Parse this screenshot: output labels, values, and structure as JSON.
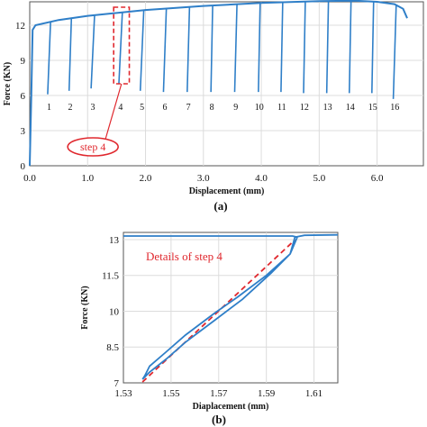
{
  "chart_data": [
    {
      "type": "line",
      "panel_label": "(a)",
      "xlabel": "Displacement (mm)",
      "ylabel": "Force (KN)",
      "xlim": [
        0.0,
        6.8
      ],
      "ylim": [
        0,
        14
      ],
      "xticks": [
        "0.0",
        "1.0",
        "2.0",
        "3.0",
        "4.0",
        "5.0",
        "6.0"
      ],
      "yticks": [
        "0",
        "3",
        "6",
        "9",
        "12"
      ],
      "grid": true,
      "series_color": "#2f7fc8",
      "envelope": {
        "x": [
          0.0,
          0.03,
          0.05,
          0.1,
          0.5,
          1.0,
          2.0,
          3.0,
          4.0,
          5.0,
          5.6,
          6.0,
          6.3,
          6.45,
          6.52
        ],
        "y": [
          0.0,
          6.5,
          11.6,
          12.0,
          12.45,
          12.8,
          13.3,
          13.65,
          13.9,
          14.05,
          14.1,
          14.0,
          13.8,
          13.4,
          12.6
        ]
      },
      "unload_steps": [
        {
          "label": "1",
          "x_top": 0.36,
          "x_bottom": 0.31,
          "y_bottom": 6.1
        },
        {
          "label": "2",
          "x_top": 0.72,
          "x_bottom": 0.68,
          "y_bottom": 6.4
        },
        {
          "label": "3",
          "x_top": 1.12,
          "x_bottom": 1.06,
          "y_bottom": 6.6
        },
        {
          "label": "4",
          "x_top": 1.6,
          "x_bottom": 1.54,
          "y_bottom": 7.0
        },
        {
          "label": "5",
          "x_top": 1.97,
          "x_bottom": 1.91,
          "y_bottom": 6.4
        },
        {
          "label": "6",
          "x_top": 2.36,
          "x_bottom": 2.31,
          "y_bottom": 6.3
        },
        {
          "label": "7",
          "x_top": 2.76,
          "x_bottom": 2.72,
          "y_bottom": 6.3
        },
        {
          "label": "8",
          "x_top": 3.16,
          "x_bottom": 3.13,
          "y_bottom": 6.3
        },
        {
          "label": "9",
          "x_top": 3.58,
          "x_bottom": 3.54,
          "y_bottom": 6.3
        },
        {
          "label": "10",
          "x_top": 3.98,
          "x_bottom": 3.95,
          "y_bottom": 6.3
        },
        {
          "label": "11",
          "x_top": 4.37,
          "x_bottom": 4.34,
          "y_bottom": 6.3
        },
        {
          "label": "12",
          "x_top": 4.76,
          "x_bottom": 4.73,
          "y_bottom": 6.2
        },
        {
          "label": "13",
          "x_top": 5.16,
          "x_bottom": 5.13,
          "y_bottom": 6.2
        },
        {
          "label": "14",
          "x_top": 5.55,
          "x_bottom": 5.52,
          "y_bottom": 6.2
        },
        {
          "label": "15",
          "x_top": 5.94,
          "x_bottom": 5.91,
          "y_bottom": 6.2
        },
        {
          "label": "16",
          "x_top": 6.33,
          "x_bottom": 6.28,
          "y_bottom": 5.7
        }
      ],
      "step_label_y": 5.0,
      "highlight_box": {
        "x0": 1.45,
        "x1": 1.72,
        "y0": 7.0,
        "y1": 14.4,
        "color": "#e0282e"
      },
      "callout": {
        "text": "step 4",
        "color": "#e0282e"
      }
    },
    {
      "type": "line",
      "panel_label": "(b)",
      "annotation": "Details of step 4",
      "annotation_color": "#e0282e",
      "xlabel": "Diaplacement (mm)",
      "ylabel": "Force (KN)",
      "xlim": [
        1.53,
        1.62
      ],
      "ylim": [
        7,
        13.3
      ],
      "xticks": [
        "1.53",
        "1.55",
        "1.57",
        "1.59",
        "1.61"
      ],
      "yticks": [
        "7",
        "8.5",
        "10",
        "11.5",
        "13"
      ],
      "grid": true,
      "series_color": "#2f7fc8",
      "loop": {
        "x": [
          1.53,
          1.545,
          1.56,
          1.575,
          1.59,
          1.601,
          1.603,
          1.6,
          1.592,
          1.58,
          1.568,
          1.556,
          1.548,
          1.541,
          1.538,
          1.539,
          1.541,
          1.548,
          1.556,
          1.568,
          1.578,
          1.59,
          1.6,
          1.602,
          1.606,
          1.62
        ],
        "y": [
          13.15,
          13.15,
          13.15,
          13.15,
          13.15,
          13.15,
          13.1,
          12.4,
          11.6,
          10.5,
          9.6,
          8.7,
          8.0,
          7.45,
          7.15,
          7.3,
          7.7,
          8.3,
          9.0,
          9.9,
          10.6,
          11.5,
          12.4,
          13.1,
          13.18,
          13.2
        ]
      },
      "fit_line": {
        "x": [
          1.538,
          1.602
        ],
        "y": [
          7.15,
          13.1
        ],
        "color": "#e0282e"
      }
    }
  ]
}
